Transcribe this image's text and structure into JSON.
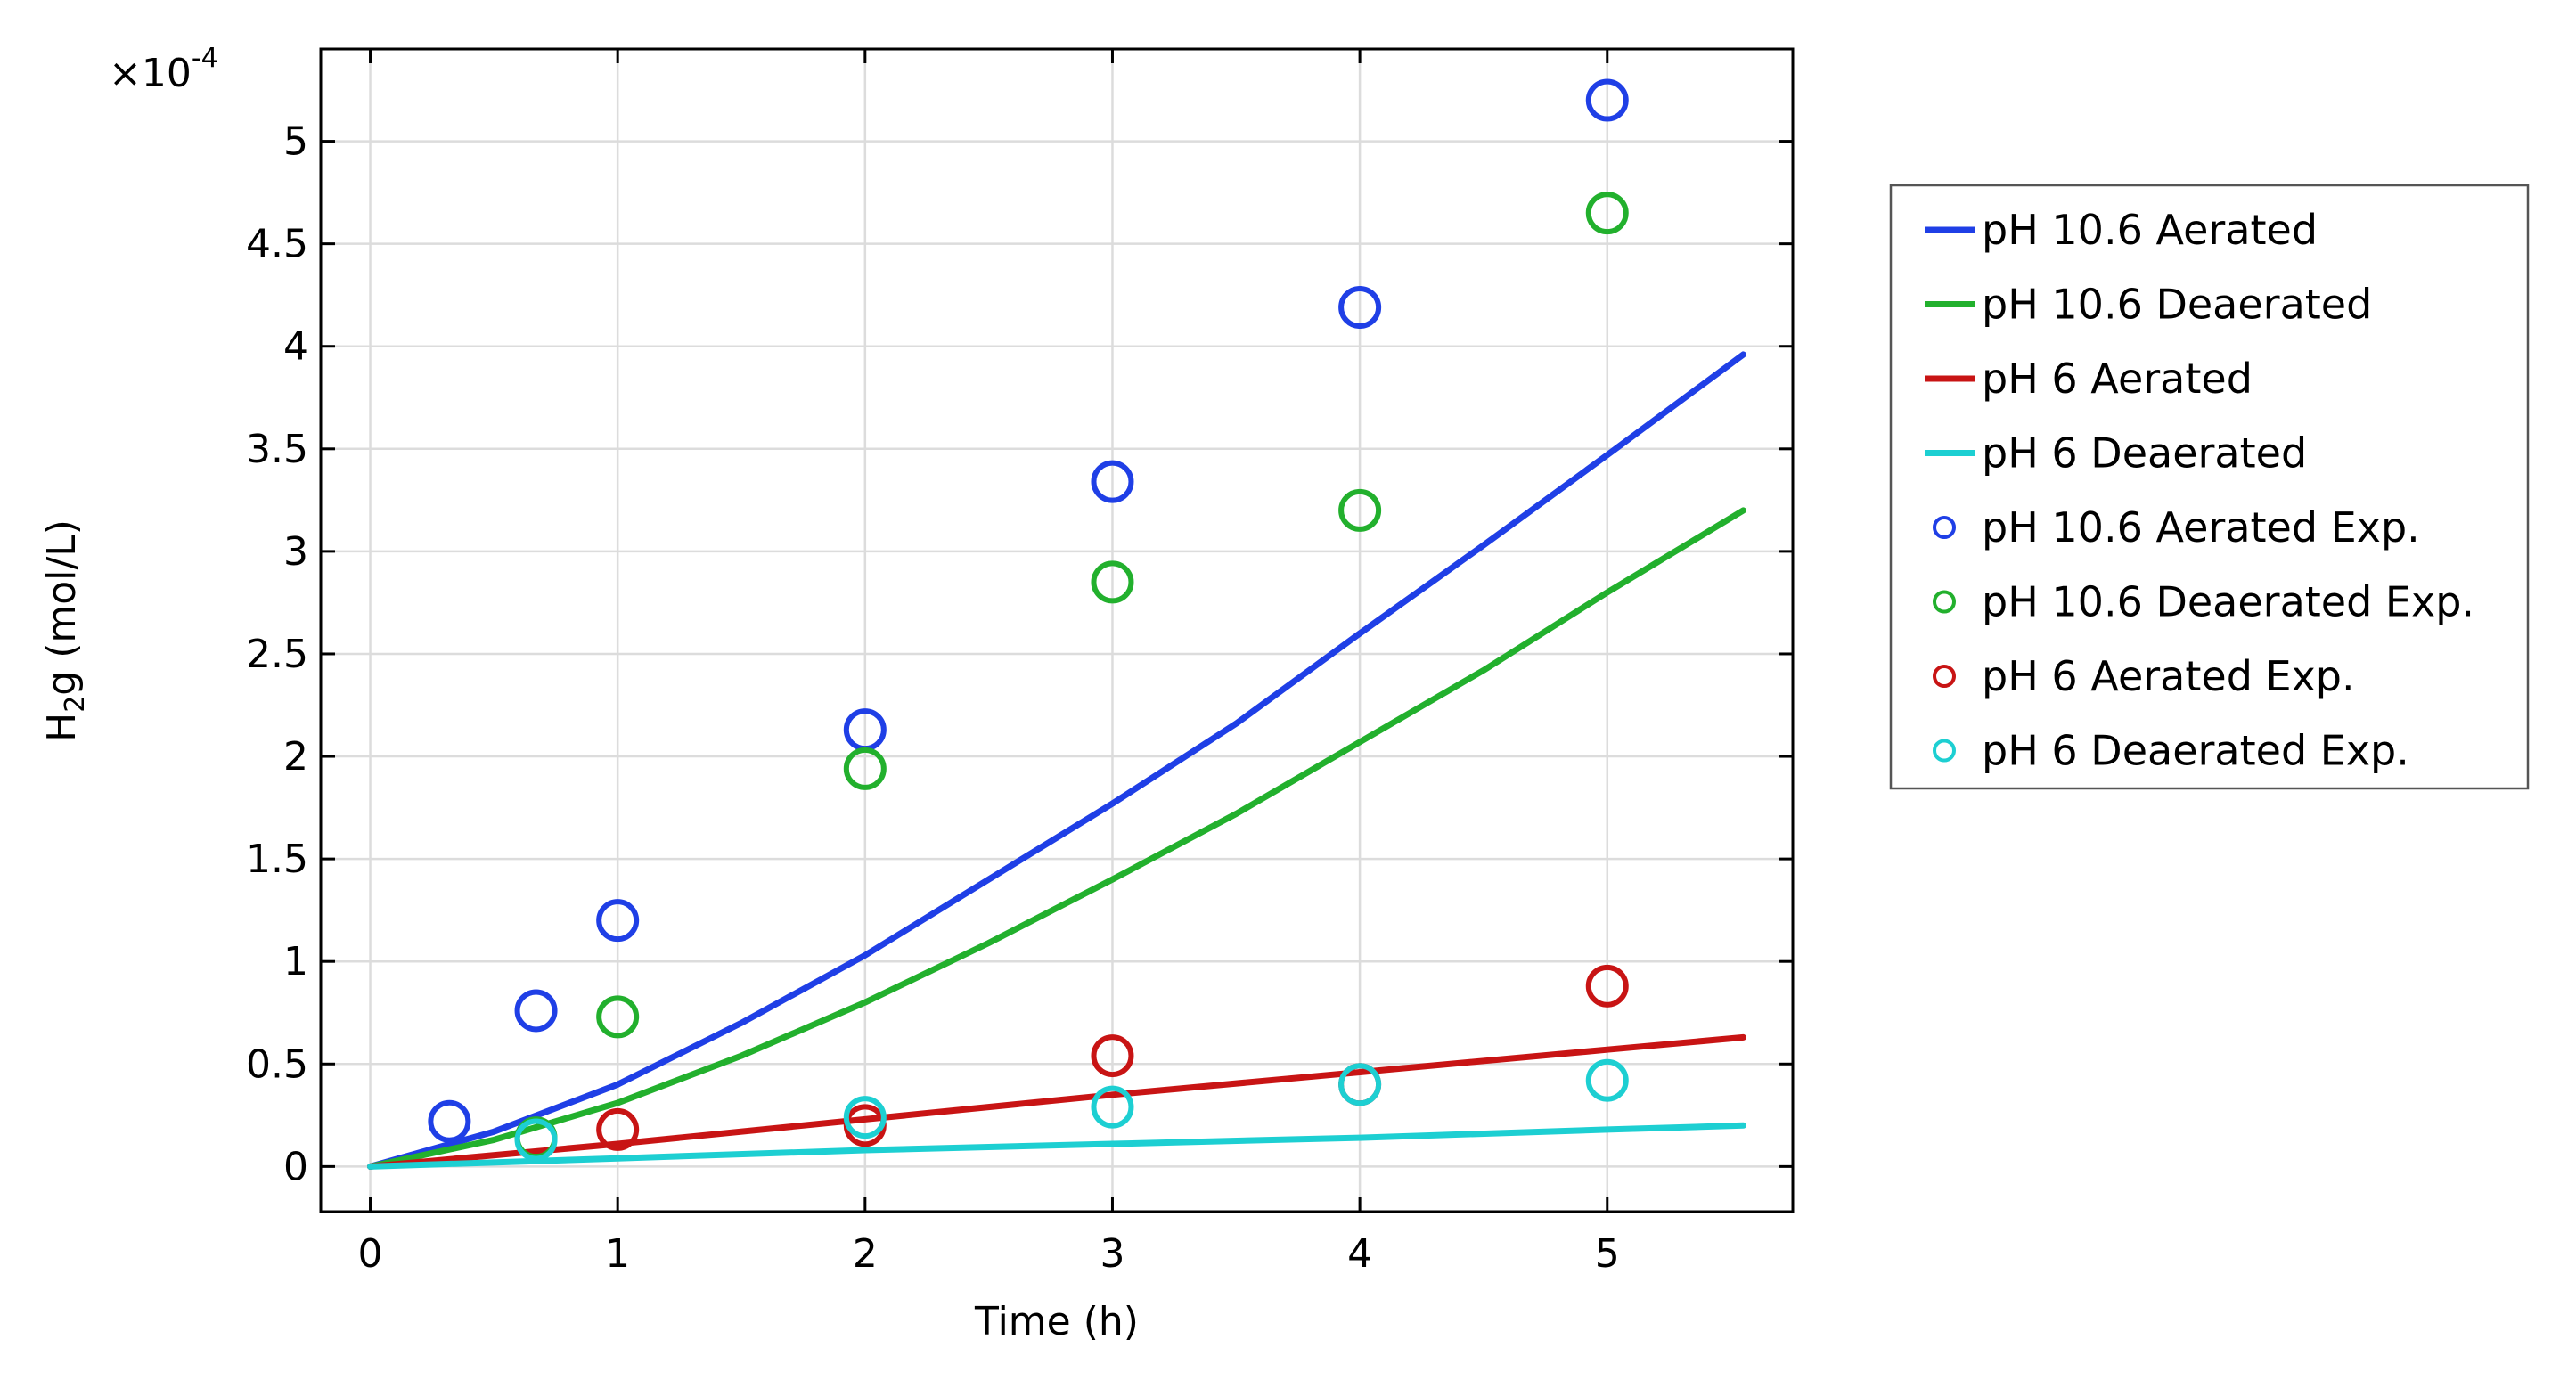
{
  "chart_data": {
    "type": "line",
    "xlabel": "Time (h)",
    "ylabel_main": "H",
    "ylabel_sub": "2",
    "ylabel_rest": "g (mol/L)",
    "multiplier_prefix": "×10",
    "multiplier_exp": "-4",
    "xlim": [
      -0.2,
      5.75
    ],
    "ylim": [
      -0.22,
      5.45
    ],
    "xticks": [
      0,
      1,
      2,
      3,
      4,
      5
    ],
    "xtick_labels": [
      "0",
      "1",
      "2",
      "3",
      "4",
      "5"
    ],
    "yticks": [
      0,
      0.5,
      1,
      1.5,
      2,
      2.5,
      3,
      3.5,
      4,
      4.5,
      5
    ],
    "ytick_labels": [
      "0",
      "0.5",
      "1",
      "1.5",
      "2",
      "2.5",
      "3",
      "3.5",
      "4",
      "4.5",
      "5"
    ],
    "grid": true,
    "legend_position": "outside-right",
    "series": [
      {
        "name": "pH 10.6 Aerated",
        "kind": "line",
        "color": "#1f3fe6",
        "x": [
          0,
          0.5,
          1,
          1.5,
          2,
          2.5,
          3,
          3.5,
          4,
          4.5,
          5,
          5.55
        ],
        "y": [
          0,
          0.17,
          0.4,
          0.7,
          1.03,
          1.4,
          1.77,
          2.16,
          2.6,
          3.03,
          3.47,
          3.96
        ]
      },
      {
        "name": "pH 10.6 Deaerated",
        "kind": "line",
        "color": "#22b02d",
        "x": [
          0,
          0.5,
          1,
          1.5,
          2,
          2.5,
          3,
          3.5,
          4,
          4.5,
          5,
          5.55
        ],
        "y": [
          0,
          0.13,
          0.31,
          0.54,
          0.8,
          1.09,
          1.4,
          1.72,
          2.07,
          2.42,
          2.8,
          3.2
        ]
      },
      {
        "name": "pH 6 Aerated",
        "kind": "line",
        "color": "#c81414",
        "x": [
          0,
          1,
          2,
          3,
          4,
          5,
          5.55
        ],
        "y": [
          0,
          0.11,
          0.23,
          0.35,
          0.46,
          0.57,
          0.63
        ]
      },
      {
        "name": "pH 6 Deaerated",
        "kind": "line",
        "color": "#1dcfd2",
        "x": [
          0,
          1,
          2,
          3,
          4,
          5,
          5.55
        ],
        "y": [
          0,
          0.04,
          0.08,
          0.11,
          0.14,
          0.18,
          0.2
        ]
      },
      {
        "name": "pH 10.6 Aerated Exp.",
        "kind": "scatter",
        "color": "#1f3fe6",
        "x": [
          0.32,
          0.67,
          1,
          2,
          3,
          4,
          5
        ],
        "y": [
          0.22,
          0.76,
          1.2,
          2.13,
          3.34,
          4.19,
          5.2
        ]
      },
      {
        "name": "pH 10.6 Deaerated Exp.",
        "kind": "scatter",
        "color": "#22b02d",
        "x": [
          0.67,
          1,
          2,
          3,
          4,
          5
        ],
        "y": [
          0.14,
          0.73,
          1.94,
          2.85,
          3.2,
          4.65
        ]
      },
      {
        "name": "pH 6 Aerated Exp.",
        "kind": "scatter",
        "color": "#c81414",
        "x": [
          1,
          2,
          3,
          4,
          5
        ],
        "y": [
          0.18,
          0.2,
          0.54,
          0.4,
          0.88
        ]
      },
      {
        "name": "pH 6 Deaerated Exp.",
        "kind": "scatter",
        "color": "#1dcfd2",
        "x": [
          0.67,
          2,
          3,
          4,
          5
        ],
        "y": [
          0.13,
          0.24,
          0.29,
          0.4,
          0.42
        ]
      }
    ]
  }
}
